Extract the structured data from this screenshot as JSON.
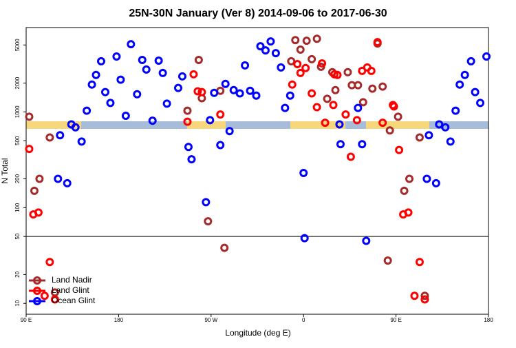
{
  "chart_data": {
    "type": "scatter",
    "title": "25N-30N January (Ver 8)   2014-09-06 to 2017-06-30",
    "x_label": "Longitude (deg E)",
    "y_label": "N Total",
    "xlim": [
      90,
      540
    ],
    "xticks": [
      {
        "value": 90,
        "label": "90 E"
      },
      180,
      {
        "value": 270,
        "label": "90 W"
      },
      {
        "value": 360,
        "label": "0"
      },
      {
        "value": 450,
        "label": "90 E"
      },
      {
        "value": 540,
        "label": "180"
      }
    ],
    "ylim": [
      7.7,
      7600
    ],
    "yticks": [
      10,
      20,
      50,
      100,
      200,
      500,
      1000,
      2000,
      5000
    ],
    "ylog": true,
    "panel_break": 50,
    "legend": "bottom-left",
    "series": [
      {
        "name": "Land Nadir",
        "color": "#a52a2a",
        "x": [
          93,
          98,
          103,
          113,
          118,
          247,
          258,
          261,
          267,
          279,
          283,
          348,
          352,
          357,
          363,
          368,
          373,
          377,
          383,
          388,
          391,
          403,
          407,
          413,
          418,
          427,
          432,
          437,
          442,
          444,
          452,
          458,
          463,
          473,
          478
        ],
        "values": [
          890,
          150,
          200,
          540,
          13,
          1030,
          3490,
          1390,
          72,
          1660,
          38,
          3380,
          5620,
          4470,
          5530,
          3550,
          5810,
          2960,
          1370,
          2600,
          1690,
          2600,
          1900,
          1900,
          1260,
          1750,
          5180,
          1840,
          28,
          640,
          890,
          150,
          200,
          540,
          12
        ]
      },
      {
        "name": "Land Glint",
        "color": "#ff0000",
        "x": [
          93,
          97,
          102,
          108,
          113,
          118,
          247,
          253,
          257,
          261,
          279,
          349,
          354,
          357,
          362,
          368,
          373,
          378,
          381,
          389,
          390,
          393,
          401,
          406,
          412,
          417,
          422,
          426,
          432,
          437,
          447,
          448,
          453,
          457,
          462,
          468,
          473,
          478
        ],
        "values": [
          410,
          85,
          89,
          12,
          27,
          11,
          790,
          2470,
          1640,
          1610,
          940,
          1930,
          3160,
          2550,
          2870,
          1560,
          1120,
          3210,
          770,
          1180,
          2470,
          2430,
          940,
          340,
          820,
          2680,
          2910,
          2680,
          5350,
          770,
          1180,
          1140,
          400,
          85,
          89,
          12,
          27,
          11
        ]
      },
      {
        "name": "Ocean Glint",
        "color": "#0000ff",
        "x": [
          121,
          130,
          123,
          134,
          138,
          144,
          149,
          154,
          158,
          167,
          163,
          172,
          178,
          182,
          187,
          192,
          198,
          203,
          207,
          213,
          219,
          223,
          227,
          238,
          242,
          248,
          251,
          265,
          269,
          273,
          279,
          284,
          288,
          292,
          298,
          303,
          308,
          314,
          318,
          323,
          328,
          333,
          338,
          342,
          347,
          360,
          361,
          395,
          396,
          413,
          417,
          421,
          480,
          489,
          482,
          492,
          498,
          503,
          508,
          512,
          517,
          527,
          523,
          532,
          538
        ],
        "values": [
          200,
          180,
          570,
          740,
          690,
          490,
          1030,
          1930,
          2430,
          1610,
          3380,
          1240,
          3790,
          2170,
          910,
          5090,
          1530,
          3490,
          2770,
          810,
          3430,
          2550,
          1220,
          1780,
          2350,
          430,
          320,
          114,
          820,
          1580,
          450,
          1960,
          630,
          1690,
          1560,
          3060,
          1660,
          1480,
          4850,
          4390,
          5440,
          4110,
          2910,
          1100,
          1480,
          230,
          48,
          740,
          460,
          1100,
          460,
          45,
          200,
          180,
          570,
          740,
          690,
          490,
          1030,
          1930,
          2430,
          1610,
          3380,
          1240,
          3790
        ]
      }
    ]
  }
}
